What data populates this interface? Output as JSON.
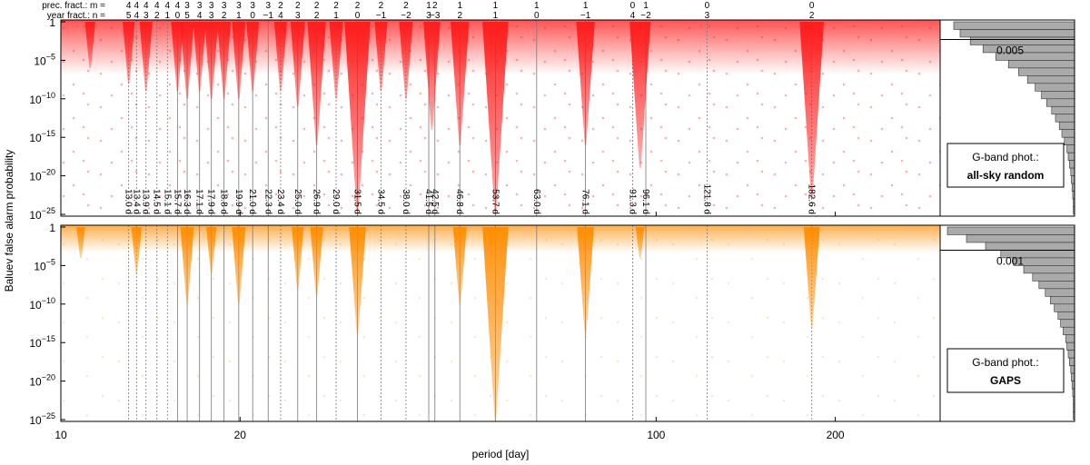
{
  "chart_data": {
    "type": "scatter",
    "x_label": "period [day]",
    "y_label": "Baluev false alarm probability",
    "log_x": true,
    "log_y": true,
    "xlim": [
      10,
      300
    ],
    "xticks": [
      10,
      20,
      100,
      200
    ],
    "ylim": [
      1e-25,
      1
    ],
    "yticks": [
      1,
      {
        "value": 1e-05,
        "label": "10−5"
      },
      {
        "value": 1e-10,
        "label": "10−10"
      },
      {
        "value": 1e-15,
        "label": "10−15"
      },
      {
        "value": 1e-20,
        "label": "10−20"
      },
      {
        "value": 1e-25,
        "label": "10−25"
      }
    ],
    "m_header": "prec. fract.: m =",
    "n_header": "year fract.: n =",
    "lines": {
      "periods": [
        13.0,
        13.4,
        13.9,
        14.5,
        15.1,
        15.7,
        16.3,
        17.1,
        17.9,
        18.8,
        19.9,
        21.0,
        22.3,
        23.4,
        25.0,
        26.9,
        29.0,
        31.5,
        34.5,
        38.0,
        41.5,
        42.5,
        46.8,
        53.7,
        63.0,
        76.1,
        91.3,
        96.1,
        121.8,
        182.6
      ],
      "value_labels": [
        "13.0 d",
        "13.4 d",
        "13.9 d",
        "14.5 d",
        "15.1 d",
        "15.7 d",
        "16.3 d",
        "17.1 d",
        "17.9 d",
        "18.8 d",
        "19.9 d",
        "21.0 d",
        "22.3 d",
        "23.4 d",
        "25.0 d",
        "26.9 d",
        "29.0 d",
        "31.5 d",
        "34.5 d",
        "38.0 d",
        "41.5 d",
        "42.5 d",
        "46.8 d",
        "53.7 d",
        "63.0 d",
        "76.1 d",
        "91.3 d",
        "96.1 d",
        "121.8 d",
        "182.6 d"
      ],
      "m": [
        "4",
        "4",
        "4",
        "4",
        "4",
        "4",
        "3",
        "3",
        "3",
        "3",
        "3",
        "3",
        "3",
        "2",
        "2",
        "2",
        "2",
        "2",
        "2",
        "2",
        "1",
        "2",
        "1",
        "1",
        "1",
        "1",
        "0",
        "1",
        "0",
        "0"
      ],
      "n": [
        "5",
        "4",
        "3",
        "2",
        "1",
        "0",
        "5",
        "4",
        "3",
        "2",
        "1",
        "0",
        "−1",
        "4",
        "3",
        "2",
        "1",
        "0",
        "−1",
        "−2",
        "3",
        "−3",
        "2",
        "1",
        "0",
        "−1",
        "4",
        "−2",
        "3",
        "2"
      ],
      "styles": [
        "dotted",
        "dotted",
        "dotted",
        "dotted",
        "dotted",
        "solid",
        "solid",
        "solid",
        "solid",
        "solid",
        "solid",
        "solid",
        "solid",
        "dotted",
        "solid",
        "solid",
        "dotted",
        "solid",
        "dotted",
        "dotted",
        "solid",
        "solid",
        "solid",
        "solid",
        "solid",
        "solid",
        "dotted",
        "solid",
        "dotted",
        "dotted"
      ]
    },
    "panels": [
      {
        "color": "#ff1a1a",
        "legend_title": "G-band phot.:",
        "legend_subtitle": "all-sky random",
        "threshold": 0.005,
        "spikes": {
          "periods": [
            11.2,
            13.0,
            13.9,
            15.7,
            16.3,
            17.1,
            17.9,
            18.8,
            19.9,
            21.0,
            23.4,
            25.0,
            26.9,
            29.0,
            31.5,
            34.5,
            38.0,
            42.0,
            46.8,
            53.7,
            76.1,
            94.0,
            182.6
          ],
          "values": [
            1e-06,
            1e-08,
            1e-09,
            1e-09,
            1e-10,
            1e-09,
            1e-10,
            1e-10,
            1e-10,
            1e-09,
            1e-09,
            1e-11,
            1e-16,
            1e-10,
            1e-25,
            1e-09,
            1e-10,
            1e-14,
            1e-16,
            1e-25,
            1e-16,
            1e-19,
            1e-23
          ]
        },
        "hist": {
          "bins": [
            1,
            0.1,
            0.01,
            0.001,
            0.0001,
            1e-05,
            1e-06,
            1e-07,
            1e-08,
            1e-09,
            1e-10,
            1e-11,
            1e-12,
            1e-13,
            1e-14,
            1e-15,
            1e-16,
            1e-17,
            1e-18,
            1e-19,
            1e-20,
            1e-21,
            1e-22,
            1e-23,
            1e-24,
            1e-25
          ],
          "counts": [
            95,
            90,
            82,
            72,
            62,
            52,
            44,
            37,
            31,
            26,
            22,
            18,
            15,
            12,
            10,
            8,
            6,
            5,
            4,
            3,
            2.5,
            2,
            1.5,
            1,
            1
          ]
        }
      },
      {
        "color": "#ff8c00",
        "legend_title": "G-band phot.:",
        "legend_subtitle": "GAPS",
        "threshold": 0.001,
        "spikes": {
          "periods": [
            10.8,
            13.4,
            16.3,
            17.9,
            19.9,
            25.0,
            26.9,
            31.5,
            46.8,
            53.7,
            76.1,
            94.0,
            182.6
          ],
          "values": [
            0.0001,
            1e-06,
            1e-10,
            1e-06,
            1e-10,
            1e-08,
            1e-09,
            1e-14,
            1e-10,
            1e-25,
            1e-14,
            0.0001,
            1e-13
          ]
        },
        "hist": {
          "bins": [
            1,
            0.1,
            0.01,
            0.001,
            0.0001,
            1e-05,
            1e-06,
            1e-07,
            1e-08,
            1e-09,
            1e-10,
            1e-11,
            1e-12,
            1e-13,
            1e-14,
            1e-15,
            1e-16,
            1e-17,
            1e-18,
            1e-19,
            1e-20,
            1e-21,
            1e-22,
            1e-23,
            1e-24,
            1e-25
          ],
          "counts": [
            100,
            85,
            70,
            58,
            48,
            40,
            33,
            28,
            23,
            19,
            16,
            13,
            11,
            9,
            7,
            6,
            5,
            4,
            3,
            2.5,
            2,
            1.5,
            1,
            1,
            1
          ]
        }
      }
    ]
  }
}
